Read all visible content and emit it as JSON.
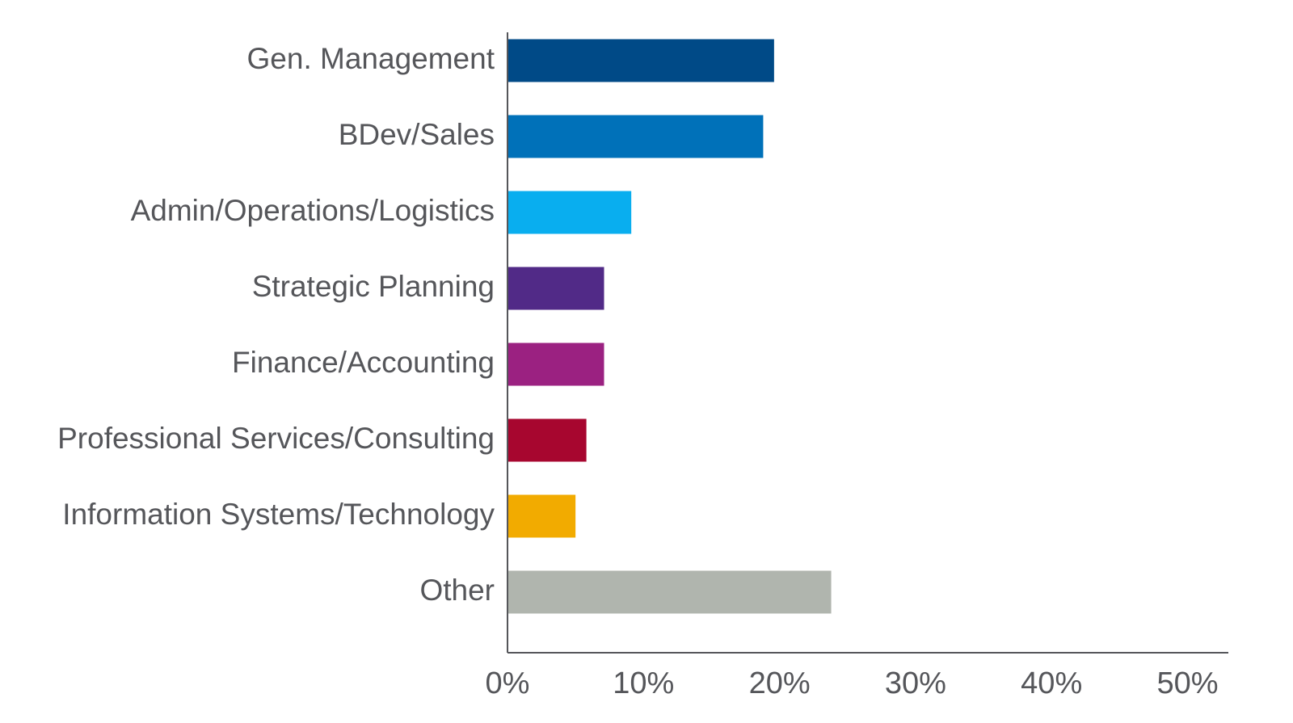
{
  "chart_data": {
    "type": "bar",
    "orientation": "horizontal",
    "title": "",
    "xlabel": "",
    "ylabel": "",
    "categories": [
      "Gen. Management",
      "BDev/Sales",
      "Admin/Operations/Logistics",
      "Strategic Planning",
      "Finance/Accounting",
      "Professional Services/Consulting",
      "Information Systems/Technology",
      "Other"
    ],
    "values": [
      19.6,
      18.8,
      9.1,
      7.1,
      7.1,
      5.8,
      5.0,
      23.8
    ],
    "colors": [
      "#004a87",
      "#0071b9",
      "#09aeef",
      "#512a87",
      "#9b2181",
      "#a7062f",
      "#f2ab00",
      "#b0b5ae"
    ],
    "xlim": [
      0,
      53
    ],
    "ticks": [
      0,
      10,
      20,
      30,
      40,
      50
    ],
    "tick_labels": [
      "0%",
      "10%",
      "20%",
      "30%",
      "40%",
      "50%"
    ],
    "grid": false,
    "legend": "none"
  }
}
